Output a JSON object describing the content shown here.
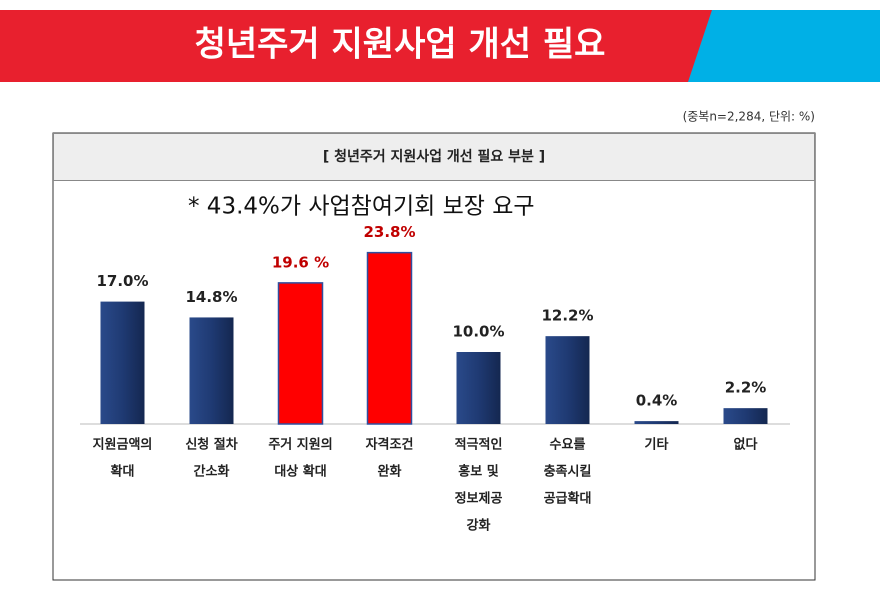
{
  "chart_data": {
    "type": "bar",
    "title": "청년주거 지원사업 개선 필요",
    "note": "(중복n=2,284, 단위: %)",
    "subtitle": "[ 청년주거 지원사업 개선 필요 부분 ]",
    "annotation": "* 43.4%가 사업참여기회 보장 요구",
    "categories": [
      [
        "지원금액의",
        "확대"
      ],
      [
        "신청 절차",
        "간소화"
      ],
      [
        "주거 지원의",
        "대상 확대"
      ],
      [
        "자격조건",
        "완화"
      ],
      [
        "적극적인",
        "홍보 및",
        "정보제공",
        "강화"
      ],
      [
        "수요를",
        "충족시킬",
        "공급확대"
      ],
      [
        "기타"
      ],
      [
        "없다"
      ]
    ],
    "values": [
      17.0,
      14.8,
      19.6,
      23.8,
      10.0,
      12.2,
      0.4,
      2.2
    ],
    "value_labels": [
      "17.0%",
      "14.8%",
      "19.6 %",
      "23.8%",
      "10.0%",
      "12.2%",
      "0.4%",
      "2.2%"
    ],
    "colors": [
      "#1f3a73",
      "#1f3a73",
      "#ff0000",
      "#ff0000",
      "#1f3a73",
      "#1f3a73",
      "#1f3a73",
      "#1f3a73"
    ],
    "value_label_colors": [
      "#222222",
      "#222222",
      "#c00000",
      "#c00000",
      "#222222",
      "#222222",
      "#222222",
      "#222222"
    ],
    "ylim": [
      0,
      25
    ]
  }
}
